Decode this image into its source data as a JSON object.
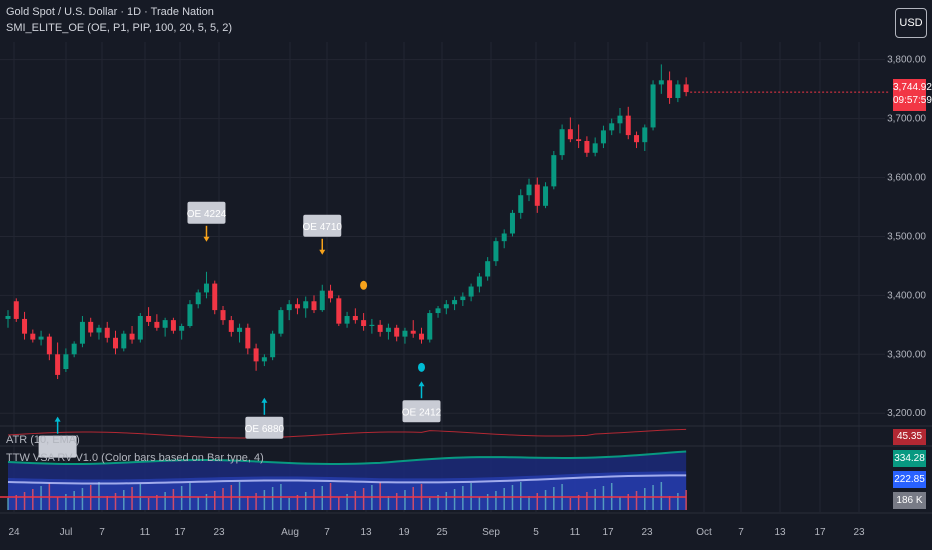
{
  "header": {
    "title": "Gold Spot / U.S. Dollar · 1D · Trade Nation",
    "indicator": "SMI_ELITE_OE (OE, P1, PIP, 100, 20, 5, 5, 2)"
  },
  "currency_button": "USD",
  "price_badge": {
    "value": "3,744.92",
    "countdown": "09:57:59",
    "color": "#f23645"
  },
  "atr": {
    "label": "ATR (10, EMA)",
    "value": "45.35",
    "color": "#b22833"
  },
  "vsa": {
    "label": "TTW VSA RV V1.0 (Color bars based on Bar type, 4)",
    "values": [
      "334.28 K",
      "222.85 K",
      "186 K"
    ],
    "colors": [
      "#089981",
      "#2962ff",
      "#787b86"
    ]
  },
  "colors": {
    "up": "#089981",
    "down": "#f23645",
    "background": "#161a25",
    "grid": "#232632",
    "marker_orange": "#f7a21b",
    "marker_cyan": "#00bcd4"
  },
  "chart_data": {
    "type": "candlestick",
    "y_ticks": [
      "3,800.00",
      "3,700.00",
      "3,600.00",
      "3,500.00",
      "3,400.00",
      "3,300.00",
      "3,200.00"
    ],
    "ylim": [
      3180,
      3830
    ],
    "x_ticks": [
      "24",
      "Jul",
      "7",
      "11",
      "17",
      "23",
      "Aug",
      "7",
      "13",
      "19",
      "25",
      "Sep",
      "5",
      "11",
      "17",
      "23",
      "Oct",
      "7",
      "13",
      "17",
      "23"
    ],
    "series": [
      {
        "o": 3360,
        "h": 3375,
        "l": 3345,
        "c": 3365
      },
      {
        "o": 3390,
        "h": 3395,
        "l": 3355,
        "c": 3360
      },
      {
        "o": 3360,
        "h": 3372,
        "l": 3325,
        "c": 3335
      },
      {
        "o": 3335,
        "h": 3342,
        "l": 3320,
        "c": 3325
      },
      {
        "o": 3325,
        "h": 3340,
        "l": 3315,
        "c": 3330
      },
      {
        "o": 3330,
        "h": 3335,
        "l": 3290,
        "c": 3300
      },
      {
        "o": 3300,
        "h": 3320,
        "l": 3258,
        "c": 3265
      },
      {
        "o": 3275,
        "h": 3310,
        "l": 3270,
        "c": 3300
      },
      {
        "o": 3300,
        "h": 3322,
        "l": 3295,
        "c": 3318
      },
      {
        "o": 3318,
        "h": 3365,
        "l": 3312,
        "c": 3355
      },
      {
        "o": 3355,
        "h": 3362,
        "l": 3330,
        "c": 3337
      },
      {
        "o": 3337,
        "h": 3350,
        "l": 3325,
        "c": 3345
      },
      {
        "o": 3345,
        "h": 3355,
        "l": 3320,
        "c": 3328
      },
      {
        "o": 3328,
        "h": 3340,
        "l": 3300,
        "c": 3310
      },
      {
        "o": 3310,
        "h": 3340,
        "l": 3305,
        "c": 3335
      },
      {
        "o": 3335,
        "h": 3348,
        "l": 3318,
        "c": 3325
      },
      {
        "o": 3325,
        "h": 3370,
        "l": 3320,
        "c": 3365
      },
      {
        "o": 3365,
        "h": 3380,
        "l": 3348,
        "c": 3355
      },
      {
        "o": 3355,
        "h": 3368,
        "l": 3340,
        "c": 3345
      },
      {
        "o": 3345,
        "h": 3362,
        "l": 3330,
        "c": 3358
      },
      {
        "o": 3358,
        "h": 3362,
        "l": 3335,
        "c": 3340
      },
      {
        "o": 3340,
        "h": 3352,
        "l": 3325,
        "c": 3348
      },
      {
        "o": 3348,
        "h": 3392,
        "l": 3345,
        "c": 3385
      },
      {
        "o": 3385,
        "h": 3410,
        "l": 3378,
        "c": 3405
      },
      {
        "o": 3405,
        "h": 3440,
        "l": 3395,
        "c": 3420
      },
      {
        "o": 3420,
        "h": 3425,
        "l": 3368,
        "c": 3375
      },
      {
        "o": 3375,
        "h": 3382,
        "l": 3350,
        "c": 3358
      },
      {
        "o": 3358,
        "h": 3365,
        "l": 3330,
        "c": 3338
      },
      {
        "o": 3338,
        "h": 3352,
        "l": 3320,
        "c": 3345
      },
      {
        "o": 3345,
        "h": 3352,
        "l": 3300,
        "c": 3310
      },
      {
        "o": 3310,
        "h": 3318,
        "l": 3272,
        "c": 3288
      },
      {
        "o": 3288,
        "h": 3300,
        "l": 3280,
        "c": 3295
      },
      {
        "o": 3295,
        "h": 3340,
        "l": 3290,
        "c": 3335
      },
      {
        "o": 3335,
        "h": 3380,
        "l": 3330,
        "c": 3375
      },
      {
        "o": 3375,
        "h": 3392,
        "l": 3358,
        "c": 3385
      },
      {
        "o": 3385,
        "h": 3395,
        "l": 3368,
        "c": 3378
      },
      {
        "o": 3378,
        "h": 3398,
        "l": 3362,
        "c": 3390
      },
      {
        "o": 3390,
        "h": 3400,
        "l": 3370,
        "c": 3375
      },
      {
        "o": 3375,
        "h": 3418,
        "l": 3372,
        "c": 3408
      },
      {
        "o": 3408,
        "h": 3418,
        "l": 3388,
        "c": 3395
      },
      {
        "o": 3395,
        "h": 3400,
        "l": 3348,
        "c": 3352
      },
      {
        "o": 3352,
        "h": 3372,
        "l": 3345,
        "c": 3365
      },
      {
        "o": 3365,
        "h": 3378,
        "l": 3352,
        "c": 3358
      },
      {
        "o": 3358,
        "h": 3370,
        "l": 3340,
        "c": 3348
      },
      {
        "o": 3348,
        "h": 3360,
        "l": 3335,
        "c": 3350
      },
      {
        "o": 3350,
        "h": 3358,
        "l": 3330,
        "c": 3338
      },
      {
        "o": 3338,
        "h": 3352,
        "l": 3325,
        "c": 3345
      },
      {
        "o": 3345,
        "h": 3350,
        "l": 3322,
        "c": 3330
      },
      {
        "o": 3330,
        "h": 3345,
        "l": 3318,
        "c": 3340
      },
      {
        "o": 3340,
        "h": 3358,
        "l": 3328,
        "c": 3335
      },
      {
        "o": 3335,
        "h": 3345,
        "l": 3318,
        "c": 3325
      },
      {
        "o": 3325,
        "h": 3375,
        "l": 3320,
        "c": 3370
      },
      {
        "o": 3370,
        "h": 3382,
        "l": 3362,
        "c": 3378
      },
      {
        "o": 3378,
        "h": 3392,
        "l": 3368,
        "c": 3385
      },
      {
        "o": 3385,
        "h": 3398,
        "l": 3375,
        "c": 3392
      },
      {
        "o": 3392,
        "h": 3405,
        "l": 3382,
        "c": 3398
      },
      {
        "o": 3398,
        "h": 3420,
        "l": 3390,
        "c": 3415
      },
      {
        "o": 3415,
        "h": 3438,
        "l": 3405,
        "c": 3432
      },
      {
        "o": 3432,
        "h": 3465,
        "l": 3425,
        "c": 3458
      },
      {
        "o": 3458,
        "h": 3498,
        "l": 3450,
        "c": 3492
      },
      {
        "o": 3492,
        "h": 3512,
        "l": 3480,
        "c": 3505
      },
      {
        "o": 3505,
        "h": 3545,
        "l": 3500,
        "c": 3540
      },
      {
        "o": 3540,
        "h": 3580,
        "l": 3530,
        "c": 3570
      },
      {
        "o": 3570,
        "h": 3598,
        "l": 3560,
        "c": 3588
      },
      {
        "o": 3588,
        "h": 3600,
        "l": 3540,
        "c": 3552
      },
      {
        "o": 3552,
        "h": 3592,
        "l": 3548,
        "c": 3585
      },
      {
        "o": 3585,
        "h": 3645,
        "l": 3580,
        "c": 3638
      },
      {
        "o": 3638,
        "h": 3690,
        "l": 3630,
        "c": 3682
      },
      {
        "o": 3682,
        "h": 3702,
        "l": 3660,
        "c": 3665
      },
      {
        "o": 3665,
        "h": 3690,
        "l": 3650,
        "c": 3662
      },
      {
        "o": 3662,
        "h": 3670,
        "l": 3635,
        "c": 3642
      },
      {
        "o": 3642,
        "h": 3668,
        "l": 3636,
        "c": 3658
      },
      {
        "o": 3658,
        "h": 3688,
        "l": 3650,
        "c": 3680
      },
      {
        "o": 3680,
        "h": 3700,
        "l": 3672,
        "c": 3692
      },
      {
        "o": 3692,
        "h": 3718,
        "l": 3675,
        "c": 3705
      },
      {
        "o": 3705,
        "h": 3720,
        "l": 3665,
        "c": 3672
      },
      {
        "o": 3672,
        "h": 3678,
        "l": 3650,
        "c": 3660
      },
      {
        "o": 3660,
        "h": 3690,
        "l": 3645,
        "c": 3685
      },
      {
        "o": 3685,
        "h": 3765,
        "l": 3680,
        "c": 3758
      },
      {
        "o": 3758,
        "h": 3792,
        "l": 3742,
        "c": 3765
      },
      {
        "o": 3765,
        "h": 3780,
        "l": 3725,
        "c": 3735
      },
      {
        "o": 3735,
        "h": 3765,
        "l": 3728,
        "c": 3758
      },
      {
        "o": 3758,
        "h": 3770,
        "l": 3738,
        "c": 3745
      }
    ],
    "callouts": [
      {
        "text": "OE 4224",
        "dir": "down",
        "index": 24,
        "price": 3440
      },
      {
        "text": "OE 4710",
        "dir": "down",
        "index": 38,
        "price": 3418
      },
      {
        "text": "OE 2412",
        "dir": "up",
        "index": 50,
        "price": 3300
      },
      {
        "text": "",
        "dir": "up",
        "index": 6,
        "price": 3240
      },
      {
        "text": "OE 6880",
        "dir": "up",
        "index": 31,
        "price": 3272
      }
    ],
    "markers": [
      {
        "index": 43,
        "price": 3390,
        "color": "orange"
      },
      {
        "index": 50,
        "price": 3305,
        "color": "cyan"
      }
    ]
  }
}
